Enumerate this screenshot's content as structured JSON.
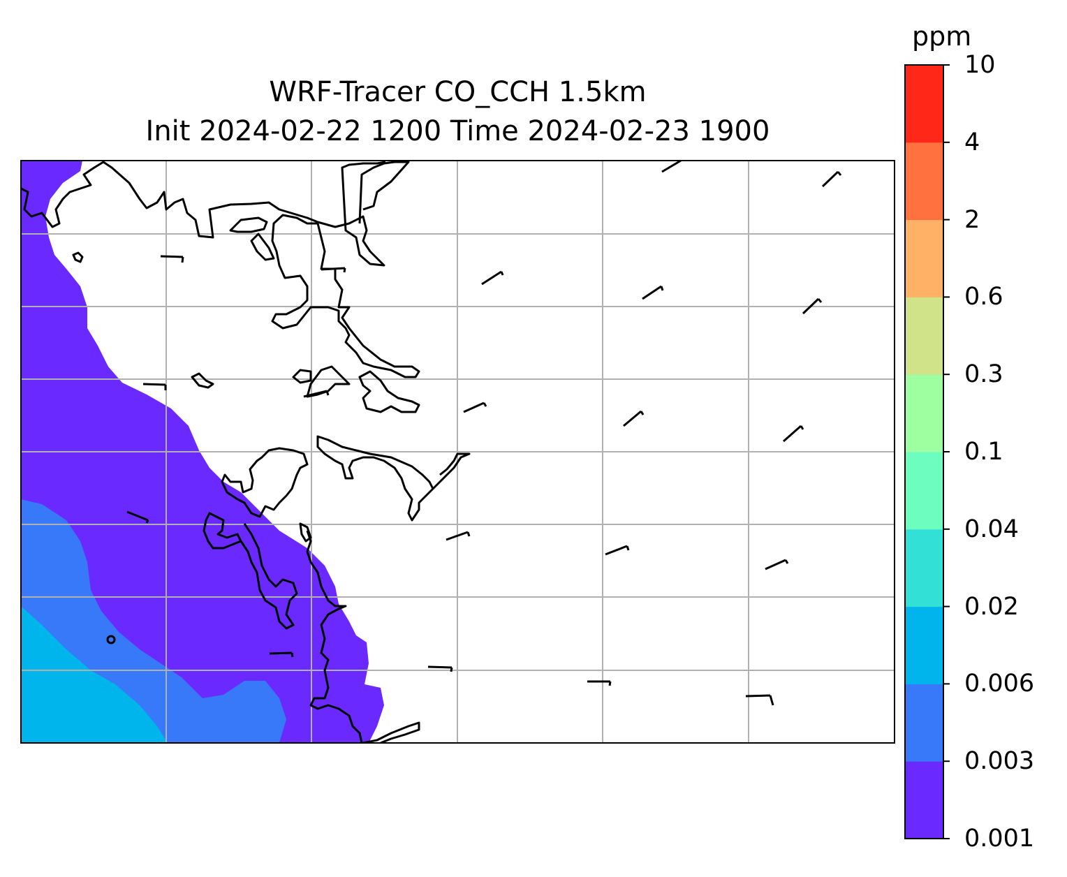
{
  "title": {
    "line1": "WRF-Tracer CO_CCH 1.5km",
    "line2": "Init 2024-02-22 1200 Time 2024-02-23 1900"
  },
  "colorbar": {
    "unit": "ppm",
    "levels": [
      "0.001",
      "0.003",
      "0.006",
      "0.02",
      "0.04",
      "0.1",
      "0.3",
      "0.6",
      "2",
      "4",
      "10"
    ],
    "colors": [
      "#6a29ff",
      "#3779f8",
      "#00b4ec",
      "#33e0d6",
      "#6cfdbf",
      "#9dffa0",
      "#d0e388",
      "#ffb166",
      "#ff723f",
      "#ff2717"
    ]
  },
  "map": {
    "field_colors_present": [
      "#6a29ff",
      "#3779f8",
      "#00b4ec"
    ],
    "gridlines": true,
    "coastline_color": "#000000"
  }
}
